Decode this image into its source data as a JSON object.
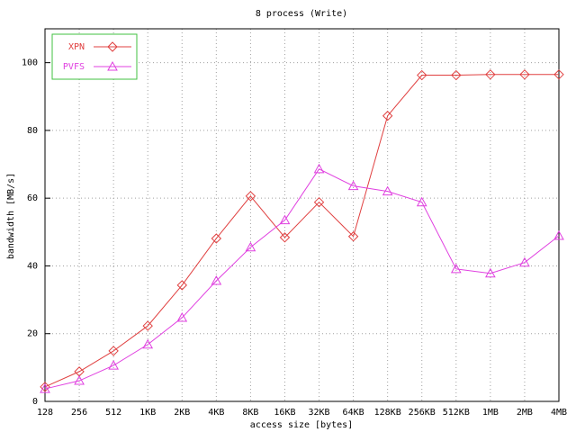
{
  "chart_data": {
    "type": "line",
    "title": "8 process (Write)",
    "x_label": "access size [bytes]",
    "y_label": "bandwidth [MB/s]",
    "categories": [
      "128",
      "256",
      "512",
      "1KB",
      "2KB",
      "4KB",
      "8KB",
      "16KB",
      "32KB",
      "64KB",
      "128KB",
      "256KB",
      "512KB",
      "1MB",
      "2MB",
      "4MB"
    ],
    "series": [
      {
        "name": "XPN",
        "color": "#e04040",
        "marker": "diamond",
        "values": [
          4.3,
          8.8,
          14.9,
          22.3,
          34.3,
          48.1,
          60.6,
          48.4,
          58.8,
          48.7,
          84.3,
          96.3,
          96.3,
          96.5,
          96.5,
          96.5
        ]
      },
      {
        "name": "PVFS",
        "color": "#e040e0",
        "marker": "triangle",
        "values": [
          3.7,
          6.1,
          10.6,
          16.8,
          24.7,
          35.6,
          45.5,
          53.5,
          68.6,
          63.6,
          62.0,
          58.8,
          39.1,
          37.8,
          41.0,
          48.9
        ]
      }
    ],
    "ylim": [
      0,
      110
    ],
    "yticks": [
      0,
      20,
      40,
      60,
      80,
      100
    ],
    "grid": true,
    "legend": "top-left",
    "legend_border_color": "#40c040"
  }
}
